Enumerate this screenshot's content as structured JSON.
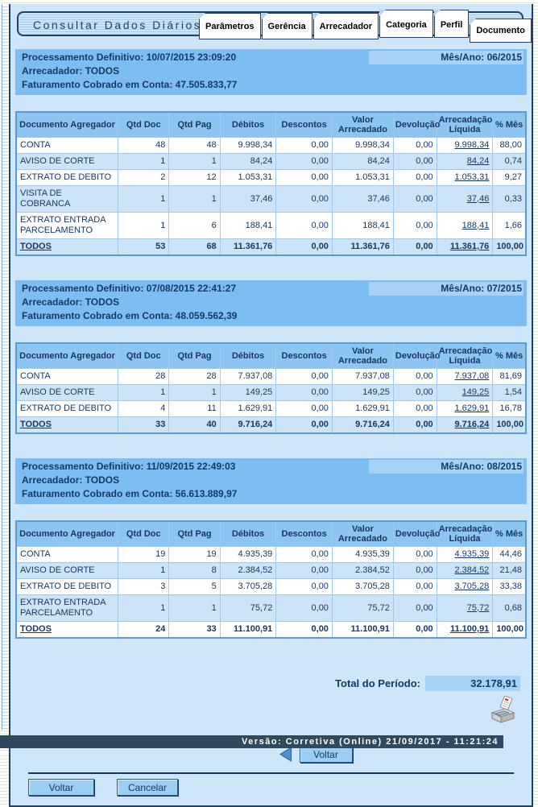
{
  "header": {
    "title": "Consultar Dados Diários",
    "tabs": [
      "Parâmetros",
      "Gerência",
      "Arrecadador",
      "Categoria",
      "Perfil",
      "Documento"
    ],
    "active_tab": "Documento"
  },
  "table_columns": [
    "Documento Agregador",
    "Qtd Doc",
    "Qtd Pag",
    "Débitos",
    "Descontos",
    "Valor Arrecadado",
    "Devolução",
    "Arrecadação Líquida",
    "% Mês"
  ],
  "months": [
    {
      "processamento": "Processamento Definitivo: 10/07/2015 23:09:20",
      "mes_ano": "Mês/Ano: 06/2015",
      "arrecadador": "Arrecadador: TODOS",
      "faturamento": "Faturamento Cobrado em Conta: 47.505.833,77",
      "rows": [
        {
          "doc": "CONTA",
          "qtd_doc": "48",
          "qtd_pag": "48",
          "debitos": "9.998,34",
          "descontos": "0,00",
          "valor_arrecadado": "9.998,34",
          "devolucao": "0,00",
          "arrecadacao_liquida": "9.998,34",
          "pct_mes": "88,00"
        },
        {
          "doc": "AVISO DE CORTE",
          "qtd_doc": "1",
          "qtd_pag": "1",
          "debitos": "84,24",
          "descontos": "0,00",
          "valor_arrecadado": "84,24",
          "devolucao": "0,00",
          "arrecadacao_liquida": "84,24",
          "pct_mes": "0,74"
        },
        {
          "doc": "EXTRATO DE DEBITO",
          "qtd_doc": "2",
          "qtd_pag": "12",
          "debitos": "1.053,31",
          "descontos": "0,00",
          "valor_arrecadado": "1.053,31",
          "devolucao": "0,00",
          "arrecadacao_liquida": "1.053,31",
          "pct_mes": "9,27"
        },
        {
          "doc": "VISITA DE COBRANCA",
          "qtd_doc": "1",
          "qtd_pag": "1",
          "debitos": "37,46",
          "descontos": "0,00",
          "valor_arrecadado": "37,46",
          "devolucao": "0,00",
          "arrecadacao_liquida": "37,46",
          "pct_mes": "0,33"
        },
        {
          "doc": "EXTRATO ENTRADA PARCELAMENTO",
          "qtd_doc": "1",
          "qtd_pag": "6",
          "debitos": "188,41",
          "descontos": "0,00",
          "valor_arrecadado": "188,41",
          "devolucao": "0,00",
          "arrecadacao_liquida": "188,41",
          "pct_mes": "1,66"
        },
        {
          "doc": "TODOS",
          "qtd_doc": "53",
          "qtd_pag": "68",
          "debitos": "11.361,76",
          "descontos": "0,00",
          "valor_arrecadado": "11.361,76",
          "devolucao": "0,00",
          "arrecadacao_liquida": "11.361,76",
          "pct_mes": "100,00"
        }
      ]
    },
    {
      "processamento": "Processamento Definitivo: 07/08/2015 22:41:27",
      "mes_ano": "Mês/Ano: 07/2015",
      "arrecadador": "Arrecadador: TODOS",
      "faturamento": "Faturamento Cobrado em Conta: 48.059.562,39",
      "rows": [
        {
          "doc": "CONTA",
          "qtd_doc": "28",
          "qtd_pag": "28",
          "debitos": "7.937,08",
          "descontos": "0,00",
          "valor_arrecadado": "7.937,08",
          "devolucao": "0,00",
          "arrecadacao_liquida": "7.937,08",
          "pct_mes": "81,69"
        },
        {
          "doc": "AVISO DE CORTE",
          "qtd_doc": "1",
          "qtd_pag": "1",
          "debitos": "149,25",
          "descontos": "0,00",
          "valor_arrecadado": "149,25",
          "devolucao": "0,00",
          "arrecadacao_liquida": "149,25",
          "pct_mes": "1,54"
        },
        {
          "doc": "EXTRATO DE DEBITO",
          "qtd_doc": "4",
          "qtd_pag": "11",
          "debitos": "1.629,91",
          "descontos": "0,00",
          "valor_arrecadado": "1.629,91",
          "devolucao": "0,00",
          "arrecadacao_liquida": "1.629,91",
          "pct_mes": "16,78"
        },
        {
          "doc": "TODOS",
          "qtd_doc": "33",
          "qtd_pag": "40",
          "debitos": "9.716,24",
          "descontos": "0,00",
          "valor_arrecadado": "9.716,24",
          "devolucao": "0,00",
          "arrecadacao_liquida": "9.716,24",
          "pct_mes": "100,00"
        }
      ]
    },
    {
      "processamento": "Processamento Definitivo: 11/09/2015 22:49:03",
      "mes_ano": "Mês/Ano: 08/2015",
      "arrecadador": "Arrecadador: TODOS",
      "faturamento": "Faturamento Cobrado em Conta: 56.613.889,97",
      "rows": [
        {
          "doc": "CONTA",
          "qtd_doc": "19",
          "qtd_pag": "19",
          "debitos": "4.935,39",
          "descontos": "0,00",
          "valor_arrecadado": "4.935,39",
          "devolucao": "0,00",
          "arrecadacao_liquida": "4.935,39",
          "pct_mes": "44,46"
        },
        {
          "doc": "AVISO DE CORTE",
          "qtd_doc": "1",
          "qtd_pag": "8",
          "debitos": "2.384,52",
          "descontos": "0,00",
          "valor_arrecadado": "2.384,52",
          "devolucao": "0,00",
          "arrecadacao_liquida": "2.384,52",
          "pct_mes": "21,48"
        },
        {
          "doc": "EXTRATO DE DEBITO",
          "qtd_doc": "3",
          "qtd_pag": "5",
          "debitos": "3.705,28",
          "descontos": "0,00",
          "valor_arrecadado": "3.705,28",
          "devolucao": "0,00",
          "arrecadacao_liquida": "3.705,28",
          "pct_mes": "33,38"
        },
        {
          "doc": "EXTRATO ENTRADA PARCELAMENTO",
          "qtd_doc": "1",
          "qtd_pag": "1",
          "debitos": "75,72",
          "descontos": "0,00",
          "valor_arrecadado": "75,72",
          "devolucao": "0,00",
          "arrecadacao_liquida": "75,72",
          "pct_mes": "0,68"
        },
        {
          "doc": "TODOS",
          "qtd_doc": "24",
          "qtd_pag": "33",
          "debitos": "11.100,91",
          "descontos": "0,00",
          "valor_arrecadado": "11.100,91",
          "devolucao": "0,00",
          "arrecadacao_liquida": "11.100,91",
          "pct_mes": "100,00"
        }
      ]
    }
  ],
  "summary": {
    "total_label": "Total do Período:",
    "total_value": "32.178,91"
  },
  "actions": {
    "back_arrow_label": "Voltar",
    "back_label": "Voltar",
    "cancel_label": "Cancelar"
  },
  "statusbar": {
    "text": "Versão: Corretiva (Online) 21/09/2017 - 11:21:24"
  },
  "colors": {
    "info_bar_blue": "#7ebdf1",
    "table_header_blue": "#8cc6f0",
    "alt_row_blue": "#cde4f8",
    "navy_text": "#17365d",
    "footer_bar": "#31495f",
    "button_blue": "#9ccdf4"
  }
}
